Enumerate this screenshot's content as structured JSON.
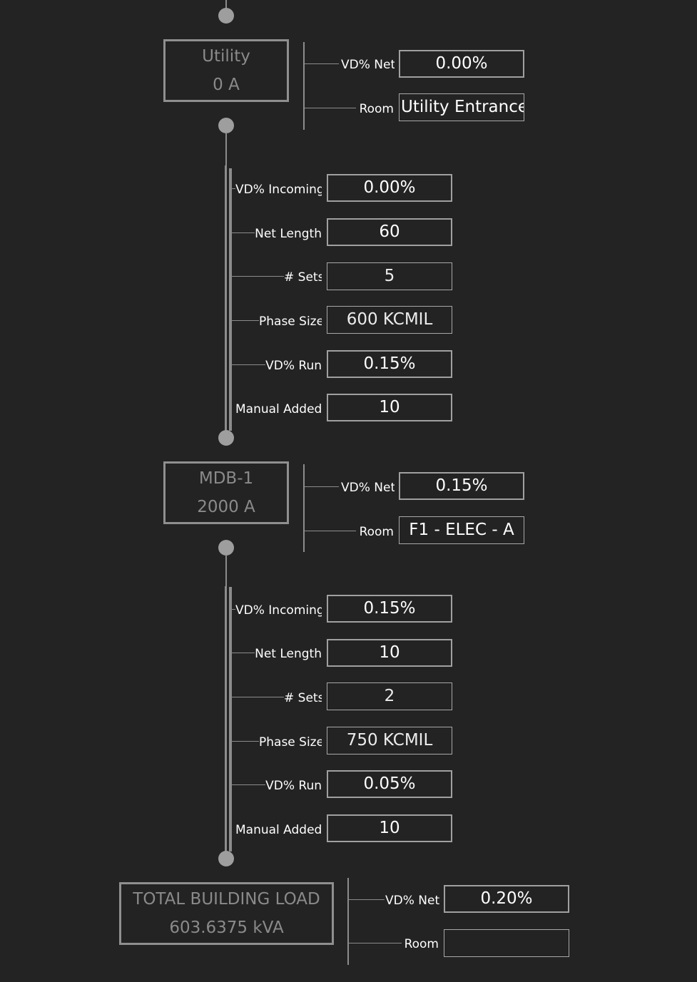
{
  "nodes": [
    {
      "name": "Utility",
      "amps": "0 A",
      "vd_net_label": "VD% Net",
      "vd_net": "0.00%",
      "room_label": "Room",
      "room": "Utility Entrance"
    },
    {
      "name": "MDB-1",
      "amps": "2000 A",
      "vd_net_label": "VD% Net",
      "vd_net": "0.15%",
      "room_label": "Room",
      "room": "F1 - ELEC - A"
    },
    {
      "name": "TOTAL BUILDING LOAD",
      "amps": "603.6375 kVA",
      "vd_net_label": "VD% Net",
      "vd_net": "0.20%",
      "room_label": "Room",
      "room": ""
    }
  ],
  "feeders": [
    {
      "vd_incoming_label": "VD% Incoming",
      "vd_incoming": "0.00%",
      "net_length_label": "Net Length",
      "net_length": "60",
      "sets_label": "# Sets",
      "sets": "5",
      "phase_size_label": "Phase Size",
      "phase_size": "600 KCMIL",
      "vd_run_label": "VD% Run",
      "vd_run": "0.15%",
      "manual_added_label": "Manual Added L",
      "manual_added": "10"
    },
    {
      "vd_incoming_label": "VD% Incoming",
      "vd_incoming": "0.15%",
      "net_length_label": "Net Length",
      "net_length": "10",
      "sets_label": "# Sets",
      "sets": "2",
      "phase_size_label": "Phase Size",
      "phase_size": "750 KCMIL",
      "vd_run_label": "VD% Run",
      "vd_run": "0.05%",
      "manual_added_label": "Manual Added L",
      "manual_added": "10"
    }
  ],
  "colors": {
    "background": "#232323",
    "line": "#8c8c8c",
    "node_text": "#8a8a8a",
    "field_border": "#a0a0a0"
  }
}
